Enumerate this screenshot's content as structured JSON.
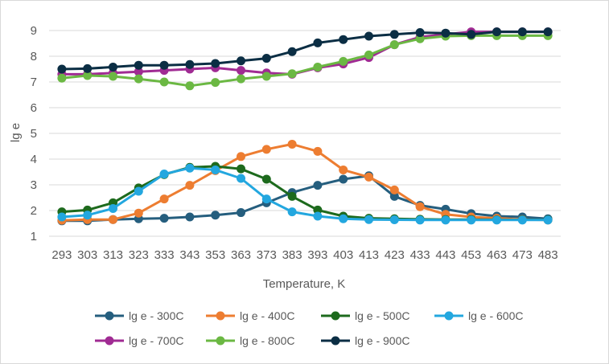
{
  "chart_data": {
    "type": "line",
    "title": "",
    "xlabel": "Temperature, K",
    "ylabel": "lg e",
    "ylim": [
      1,
      9
    ],
    "yticks": [
      "1",
      "2",
      "3",
      "4",
      "5",
      "6",
      "7",
      "8",
      "9"
    ],
    "grid": "horizontal",
    "legend_position": "bottom",
    "categories": [
      "293",
      "303",
      "313",
      "323",
      "333",
      "343",
      "353",
      "363",
      "373",
      "383",
      "393",
      "403",
      "413",
      "423",
      "433",
      "443",
      "453",
      "463",
      "473",
      "483"
    ],
    "series": [
      {
        "name": "lg e - 300C",
        "color": "#255e7e",
        "values": [
          1.6,
          1.6,
          1.65,
          1.68,
          1.7,
          1.75,
          1.82,
          1.92,
          2.3,
          2.7,
          2.98,
          3.22,
          3.35,
          2.55,
          2.2,
          2.05,
          1.88,
          1.78,
          1.75,
          1.68
        ]
      },
      {
        "name": "lg e - 400C",
        "color": "#ed7d31",
        "values": [
          1.62,
          1.65,
          1.65,
          1.9,
          2.45,
          2.98,
          3.55,
          4.1,
          4.38,
          4.58,
          4.3,
          3.58,
          3.3,
          2.8,
          2.15,
          1.85,
          1.75,
          1.7,
          1.65,
          1.63
        ]
      },
      {
        "name": "lg e - 500C",
        "color": "#1d6a1d",
        "values": [
          1.95,
          2.02,
          2.3,
          2.88,
          3.4,
          3.68,
          3.72,
          3.62,
          3.22,
          2.55,
          2.02,
          1.78,
          1.7,
          1.68,
          1.66,
          1.65,
          1.65,
          1.64,
          1.64,
          1.64
        ]
      },
      {
        "name": "lg e  - 600C",
        "color": "#23a7df",
        "values": [
          1.75,
          1.82,
          2.08,
          2.75,
          3.42,
          3.65,
          3.58,
          3.25,
          2.45,
          1.95,
          1.78,
          1.68,
          1.65,
          1.64,
          1.63,
          1.63,
          1.63,
          1.63,
          1.63,
          1.63
        ]
      },
      {
        "name": "lg e - 700C",
        "color": "#a02b93",
        "values": [
          7.3,
          7.3,
          7.35,
          7.4,
          7.45,
          7.5,
          7.55,
          7.45,
          7.35,
          7.3,
          7.55,
          7.7,
          7.95,
          8.45,
          8.75,
          8.85,
          8.95,
          8.95,
          8.95,
          8.95
        ]
      },
      {
        "name": "lg e  - 800C",
        "color": "#6bb843",
        "values": [
          7.15,
          7.25,
          7.22,
          7.12,
          7.0,
          6.85,
          6.98,
          7.12,
          7.22,
          7.32,
          7.58,
          7.8,
          8.05,
          8.45,
          8.68,
          8.78,
          8.8,
          8.8,
          8.8,
          8.8
        ]
      },
      {
        "name": "lg e - 900C",
        "color": "#0b2e44",
        "values": [
          7.5,
          7.52,
          7.58,
          7.65,
          7.65,
          7.68,
          7.72,
          7.82,
          7.92,
          8.18,
          8.52,
          8.65,
          8.78,
          8.85,
          8.92,
          8.9,
          8.85,
          8.95,
          8.95,
          8.95
        ]
      }
    ]
  }
}
